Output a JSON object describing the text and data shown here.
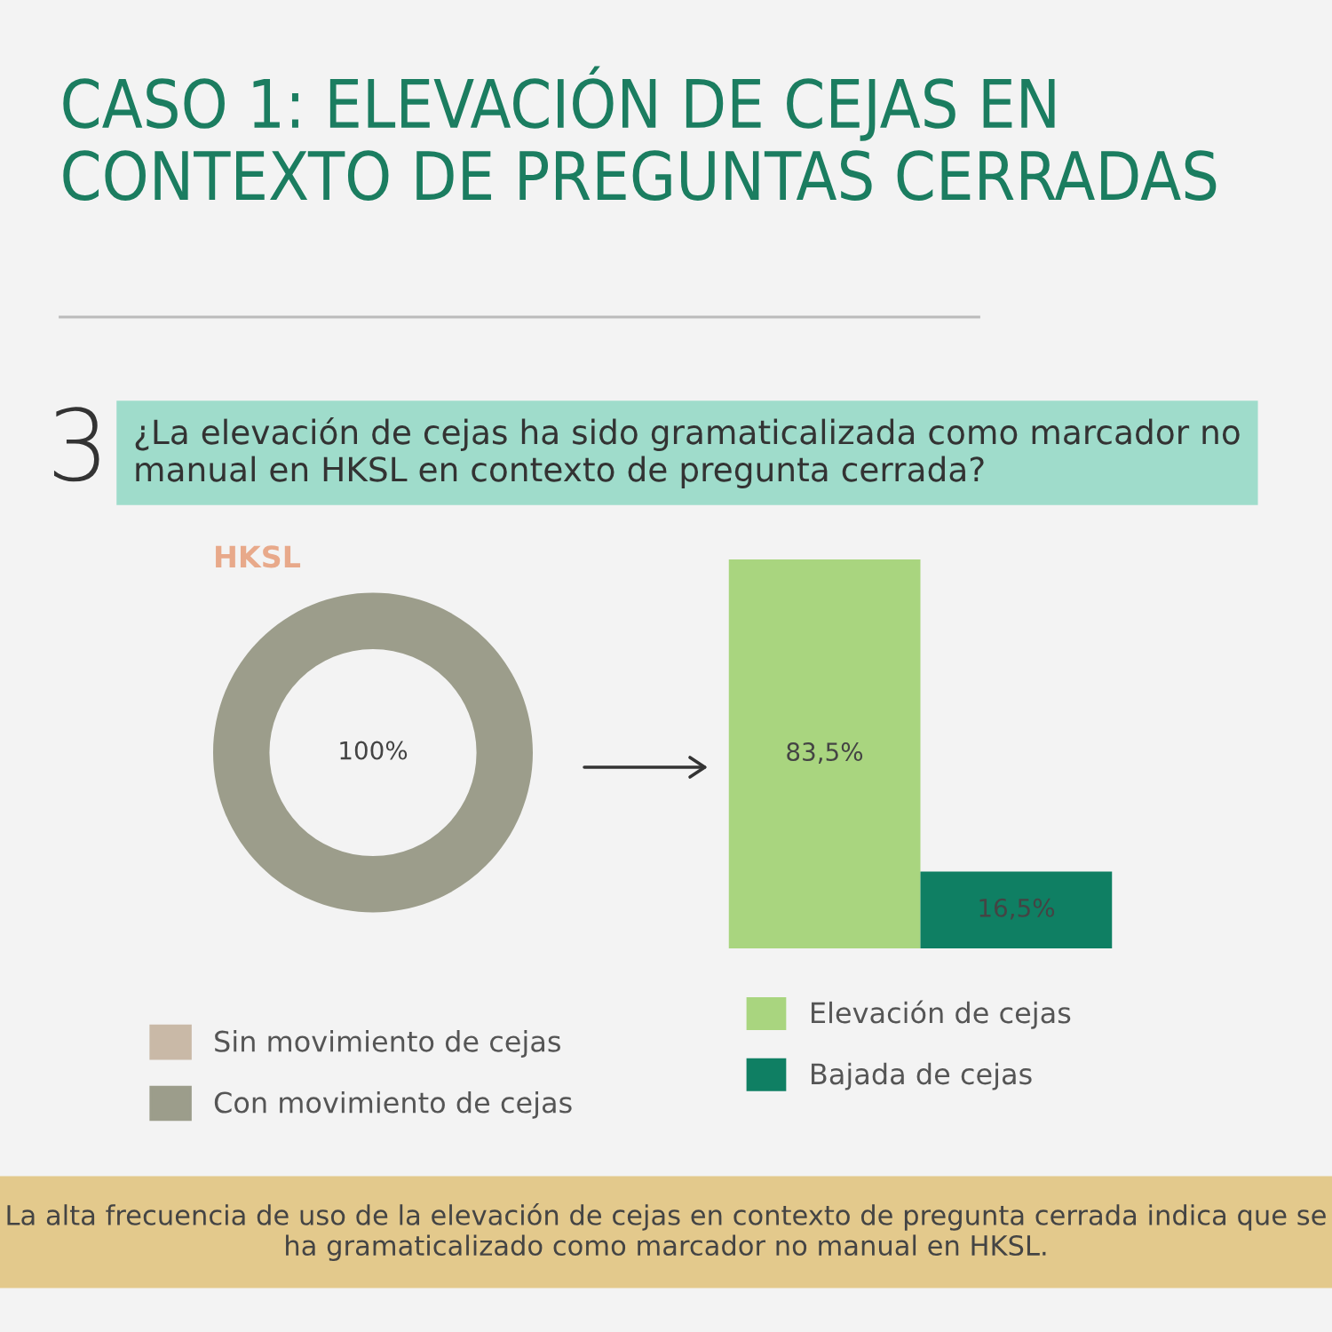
{
  "chart_data": [
    {
      "type": "donut",
      "title": "CASO 1: ELEVACIÓN DE CEJAS EN CONTEXTO DE PREGUNTAS CERRADAS",
      "subtitle": "¿La elevación de cejas ha sido gramaticalizada como marcador no manual en HKSL en contexto de pregunta cerrada?",
      "xlabel": "HKSL",
      "categories": [
        "Sin movimiento de cejas",
        "Con movimiento de cejas"
      ],
      "values": [
        0,
        100
      ],
      "colors": [
        "#c9b9a7",
        "#9c9d8b"
      ],
      "value_labels": [
        null,
        "100%"
      ],
      "legend": "bottom",
      "annotations": [
        "3",
        "La alta frecuencia de uso de la elevación de cejas en contexto de pregunta cerrada indica que se ha gramaticalizado como marcador no manual en HKSL."
      ]
    },
    {
      "type": "bar",
      "categories": [
        null
      ],
      "legend": "bottom",
      "series": [
        {
          "name": "Elevación de cejas",
          "color": "#a9d57f",
          "values": [
            83.5
          ],
          "value_labels": [
            "83,5%"
          ]
        },
        {
          "name": "Bajada de cejas",
          "color": "#0f7f63",
          "values": [
            16.5
          ],
          "value_labels": [
            "16,5%"
          ]
        }
      ]
    }
  ]
}
